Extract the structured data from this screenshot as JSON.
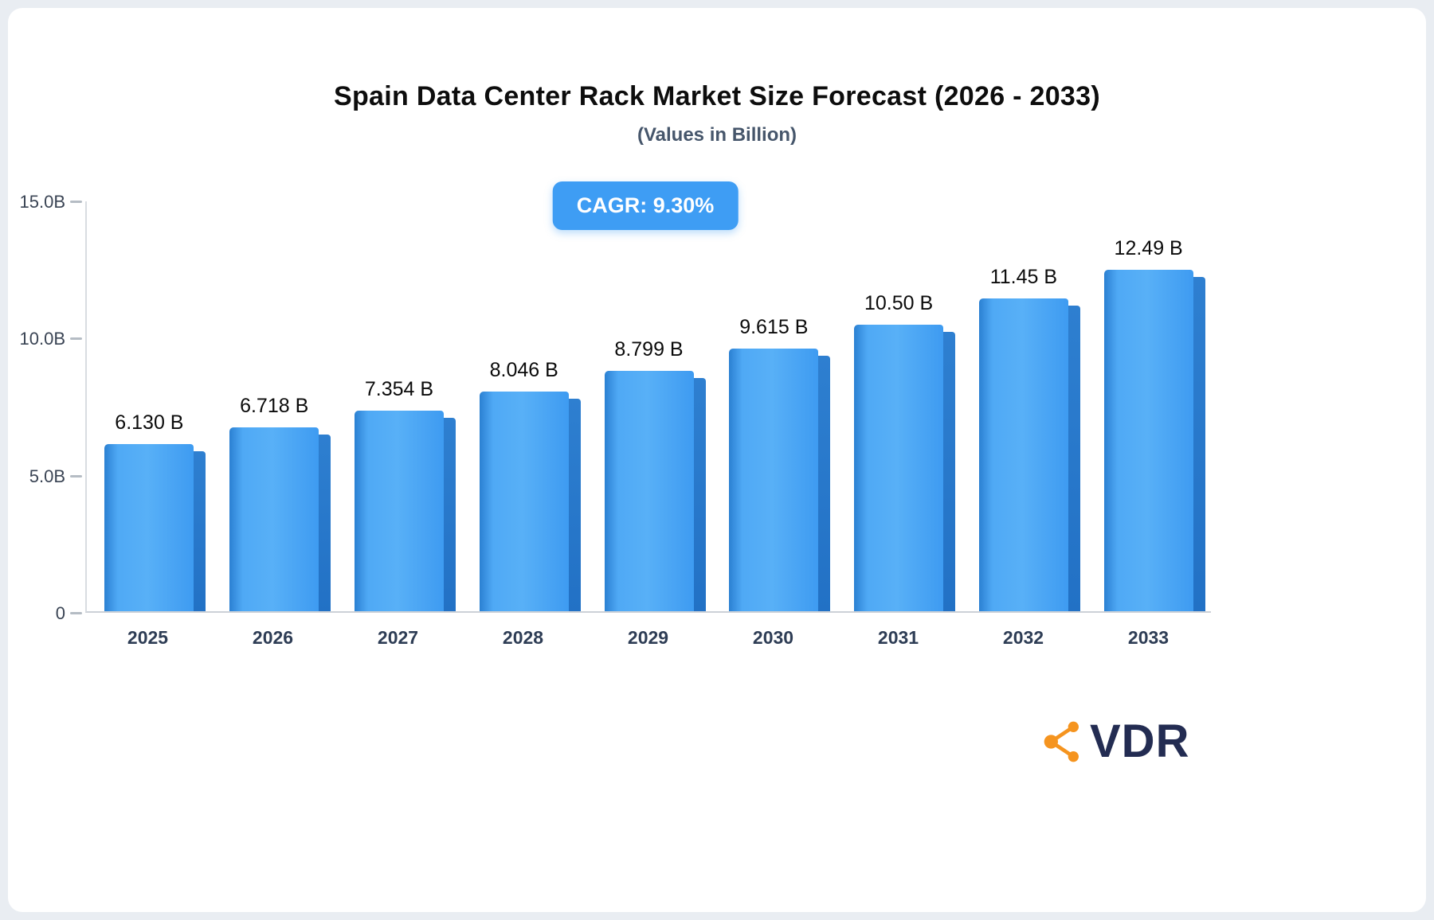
{
  "title": "Spain Data Center Rack Market Size Forecast (2026 - 2033)",
  "subtitle": "(Values in Billion)",
  "badge": {
    "label": "CAGR: 9.30%",
    "bg_color": "#3e9df4"
  },
  "chart_data": {
    "type": "bar",
    "title": "Spain Data Center Rack Market Size Forecast (2026 - 2033)",
    "subtitle": "(Values in Billion)",
    "categories": [
      "2025",
      "2026",
      "2027",
      "2028",
      "2029",
      "2030",
      "2031",
      "2032",
      "2033"
    ],
    "values": [
      6.13,
      6.718,
      7.354,
      8.046,
      8.799,
      9.615,
      10.5,
      11.45,
      12.49
    ],
    "value_labels": [
      "6.130 B",
      "6.718 B",
      "7.354 B",
      "8.046 B",
      "8.799 B",
      "9.615 B",
      "10.50 B",
      "11.45 B",
      "12.49 B"
    ],
    "xlabel": "",
    "ylabel": "",
    "y_ticks": [
      "15.0B",
      "10.0B",
      "5.0B",
      "0"
    ],
    "ylim": [
      0,
      15
    ],
    "grid": "off",
    "legend": "none",
    "bar_color_front": "#3f9ef2",
    "bar_color_side": "#2271c5"
  },
  "logo": {
    "text": "VDR",
    "icon": "share-network-icon",
    "icon_color": "#f5941f",
    "text_color": "#232c52"
  }
}
